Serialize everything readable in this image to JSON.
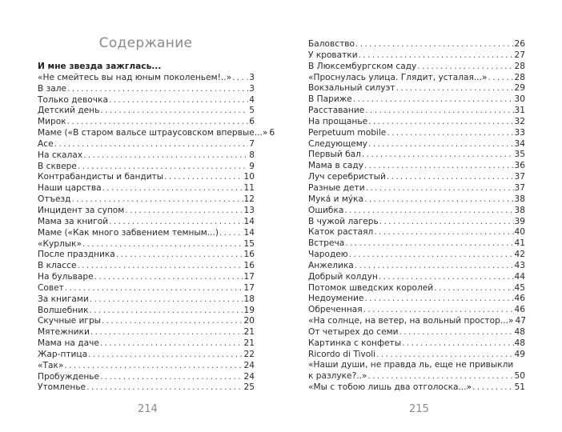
{
  "left_page": {
    "title": "Содержание",
    "section_heading": "И мне звезда зажглась...",
    "entries": [
      {
        "title": "«Не смейтесь вы над юным поколеньем!..»",
        "page": "3"
      },
      {
        "title": "В зале",
        "page": "3"
      },
      {
        "title": "Только девочка",
        "page": "4"
      },
      {
        "title": "Детский день",
        "page": "5"
      },
      {
        "title": "Мирок",
        "page": "6"
      },
      {
        "title": "Маме («В старом вальсе штраусовском впервые...»",
        "page": "6"
      },
      {
        "title": "Асе",
        "page": "7"
      },
      {
        "title": "На скалах",
        "page": "8"
      },
      {
        "title": "В сквере",
        "page": "9"
      },
      {
        "title": "Контрабандисты и бандиты",
        "page": "10"
      },
      {
        "title": "Наши царства",
        "page": "11"
      },
      {
        "title": "Отъезд",
        "page": "12"
      },
      {
        "title": "Инцидент за супом",
        "page": "13"
      },
      {
        "title": "Мама за книгой",
        "page": "14"
      },
      {
        "title": "Маме («Как много забвением темным...)",
        "page": "14"
      },
      {
        "title": "«Курлык»",
        "page": "15"
      },
      {
        "title": "После праздника",
        "page": "16"
      },
      {
        "title": "В классе",
        "page": "16"
      },
      {
        "title": "На бульваре",
        "page": "17"
      },
      {
        "title": "Совет",
        "page": "17"
      },
      {
        "title": "За книгами",
        "page": "18"
      },
      {
        "title": "Волшебник",
        "page": "19"
      },
      {
        "title": "Скучные игры",
        "page": "20"
      },
      {
        "title": "Мятежники",
        "page": "21"
      },
      {
        "title": "Мама на даче",
        "page": "21"
      },
      {
        "title": "Жар-птица",
        "page": "22"
      },
      {
        "title": "«Так»",
        "page": "24"
      },
      {
        "title": "Пробужденье",
        "page": "24"
      },
      {
        "title": "Утомленье",
        "page": "25"
      }
    ],
    "page_number": "214"
  },
  "right_page": {
    "entries": [
      {
        "title": "Баловство",
        "page": "26"
      },
      {
        "title": "У кроватки",
        "page": "27"
      },
      {
        "title": "В Люксембургском саду",
        "page": "28"
      },
      {
        "title": "«Проснулась улица. Глядит, усталая...»",
        "page": "28"
      },
      {
        "title": "Вокзальный силуэт",
        "page": "29"
      },
      {
        "title": "В Париже",
        "page": "30"
      },
      {
        "title": "Расставание",
        "page": "31"
      },
      {
        "title": "На прощанье",
        "page": "32"
      },
      {
        "title": "Perpetuum mobile",
        "page": "33"
      },
      {
        "title": "Следующему",
        "page": "34"
      },
      {
        "title": "Первый бал",
        "page": "35"
      },
      {
        "title": "Мама в саду",
        "page": "36"
      },
      {
        "title": "Луч серебристый",
        "page": "37"
      },
      {
        "title": "Разные дети",
        "page": "37"
      },
      {
        "title": "Мука́ и му́ка",
        "page": "38"
      },
      {
        "title": "Ошибка",
        "page": "38"
      },
      {
        "title": "В чужой лагерь",
        "page": "39"
      },
      {
        "title": "Каток растаял",
        "page": "40"
      },
      {
        "title": "Встреча",
        "page": "41"
      },
      {
        "title": "Чародею",
        "page": "42"
      },
      {
        "title": "Анжелика",
        "page": "43"
      },
      {
        "title": "Добрый колдун",
        "page": "44"
      },
      {
        "title": "Потомок шведских королей",
        "page": "45"
      },
      {
        "title": "Недоумение",
        "page": "46"
      },
      {
        "title": "Обреченная",
        "page": "46"
      },
      {
        "title": "«На солнце, на ветер, на вольный простор...»",
        "page": "47"
      },
      {
        "title": "От четырех до семи",
        "page": "48"
      },
      {
        "title": "Картинка с конфеты",
        "page": "48"
      },
      {
        "title": "Ricordo di Tivoli",
        "page": "49"
      }
    ],
    "multiline_entry": {
      "line1": "«Наши души, не правда ль, еще не привыкли",
      "line2": "к разлуке?..»",
      "page": "50"
    },
    "last_entry": {
      "title": "«Мы с тобою лишь два отголоска...»",
      "page": "51"
    },
    "page_number": "215"
  }
}
